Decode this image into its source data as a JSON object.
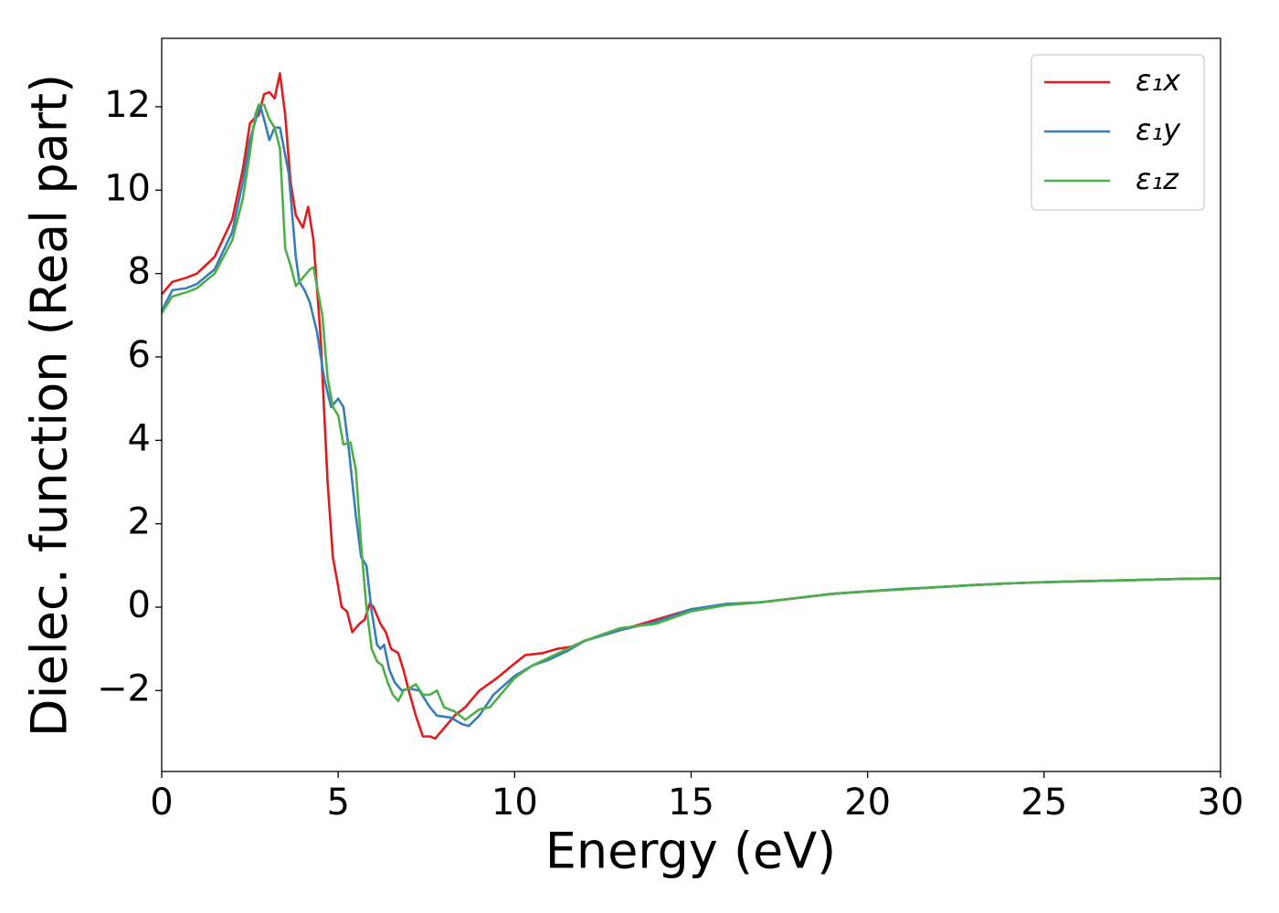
{
  "chart_data": {
    "type": "line",
    "xlabel": "Energy (eV)",
    "ylabel": "Dielec. function (Real part)",
    "xlim": [
      0,
      30
    ],
    "xticks": [
      0,
      5,
      10,
      15,
      20,
      25,
      30
    ],
    "ylim": [
      -3.94,
      13.64
    ],
    "yticks": [
      {
        "value": -2,
        "label": "−2"
      },
      0,
      2,
      4,
      6,
      8,
      10,
      12
    ],
    "legend": "upper right",
    "series": [
      {
        "name": "ε₁x",
        "color": "#e41a1c",
        "x": [
          0,
          0.3,
          0.7,
          1.0,
          1.5,
          2.0,
          2.3,
          2.5,
          2.6,
          2.75,
          2.9,
          3.05,
          3.2,
          3.35,
          3.5,
          3.65,
          3.8,
          4.0,
          4.15,
          4.3,
          4.5,
          4.7,
          4.85,
          5.0,
          5.1,
          5.25,
          5.4,
          5.6,
          5.75,
          5.9,
          6.0,
          6.2,
          6.35,
          6.5,
          6.7,
          6.85,
          7.0,
          7.2,
          7.4,
          7.6,
          7.75,
          8.0,
          8.3,
          8.6,
          9.0,
          9.5,
          10.0,
          10.3,
          10.8,
          11.2,
          11.6,
          12,
          13,
          14,
          15,
          16,
          17,
          18,
          19,
          20,
          21,
          22,
          23,
          24,
          25,
          26,
          27,
          28,
          29,
          30
        ],
        "values": [
          7.5,
          7.8,
          7.9,
          8.0,
          8.4,
          9.3,
          10.5,
          11.6,
          11.7,
          11.8,
          12.3,
          12.35,
          12.2,
          12.8,
          11.8,
          10.2,
          9.4,
          9.1,
          9.6,
          8.8,
          6.5,
          3.0,
          1.2,
          0.5,
          0.0,
          -0.1,
          -0.6,
          -0.4,
          -0.3,
          0.1,
          0.0,
          -0.4,
          -0.6,
          -1.0,
          -1.1,
          -1.5,
          -2.0,
          -2.6,
          -3.1,
          -3.1,
          -3.15,
          -2.9,
          -2.6,
          -2.4,
          -2.0,
          -1.7,
          -1.35,
          -1.15,
          -1.1,
          -1.0,
          -0.95,
          -0.8,
          -0.55,
          -0.3,
          -0.05,
          0.05,
          0.12,
          0.22,
          0.32,
          0.38,
          0.43,
          0.48,
          0.53,
          0.57,
          0.6,
          0.62,
          0.64,
          0.66,
          0.68,
          0.69
        ]
      },
      {
        "name": "ε₁y",
        "color": "#377eb8",
        "x": [
          0,
          0.3,
          0.7,
          1.0,
          1.5,
          2.0,
          2.3,
          2.5,
          2.7,
          2.8,
          2.9,
          3.05,
          3.2,
          3.35,
          3.6,
          3.8,
          3.9,
          4.05,
          4.2,
          4.4,
          4.6,
          4.8,
          5.0,
          5.15,
          5.3,
          5.5,
          5.65,
          5.8,
          5.95,
          6.1,
          6.2,
          6.3,
          6.45,
          6.6,
          6.8,
          7.0,
          7.3,
          7.6,
          7.8,
          8.2,
          8.5,
          8.7,
          9.0,
          9.4,
          10,
          10.5,
          11,
          11.5,
          12,
          13,
          14,
          15,
          16,
          17,
          18,
          19,
          20,
          21,
          22,
          23,
          24,
          25,
          26,
          27,
          28,
          29,
          30
        ],
        "values": [
          7.1,
          7.6,
          7.65,
          7.75,
          8.1,
          9.0,
          10.2,
          11.2,
          11.8,
          12.0,
          11.7,
          11.2,
          11.5,
          11.5,
          10.4,
          8.4,
          7.8,
          7.6,
          7.3,
          6.6,
          5.5,
          4.8,
          5.0,
          4.8,
          3.8,
          2.2,
          1.2,
          1.0,
          -0.1,
          -0.9,
          -1.0,
          -0.9,
          -1.5,
          -1.8,
          -2.0,
          -1.95,
          -2.0,
          -2.4,
          -2.6,
          -2.65,
          -2.8,
          -2.85,
          -2.6,
          -2.1,
          -1.65,
          -1.4,
          -1.25,
          -1.05,
          -0.8,
          -0.55,
          -0.35,
          -0.05,
          0.08,
          0.12,
          0.22,
          0.32,
          0.38,
          0.44,
          0.48,
          0.53,
          0.57,
          0.6,
          0.62,
          0.64,
          0.66,
          0.68,
          0.69
        ]
      },
      {
        "name": "ε₁z",
        "color": "#4daf4a",
        "x": [
          0,
          0.3,
          0.7,
          1.0,
          1.5,
          2.0,
          2.3,
          2.5,
          2.65,
          2.75,
          2.9,
          3.05,
          3.2,
          3.35,
          3.5,
          3.65,
          3.8,
          4.0,
          4.2,
          4.3,
          4.4,
          4.55,
          4.7,
          4.85,
          5.0,
          5.15,
          5.35,
          5.5,
          5.65,
          5.8,
          5.95,
          6.1,
          6.25,
          6.4,
          6.55,
          6.7,
          6.85,
          7.0,
          7.2,
          7.4,
          7.6,
          7.8,
          8.0,
          8.3,
          8.6,
          9.0,
          9.3,
          10,
          10.5,
          11,
          11.5,
          12,
          13,
          14,
          15,
          16,
          17,
          18,
          19,
          20,
          21,
          22,
          23,
          24,
          25,
          26,
          27,
          28,
          29,
          30
        ],
        "values": [
          7.05,
          7.45,
          7.55,
          7.65,
          8.0,
          8.8,
          9.8,
          10.9,
          11.8,
          12.05,
          12.05,
          11.7,
          11.5,
          11.0,
          8.6,
          8.2,
          7.7,
          7.9,
          8.1,
          8.15,
          7.7,
          7.0,
          5.5,
          4.8,
          4.6,
          3.9,
          3.95,
          3.3,
          1.5,
          0.0,
          -1.0,
          -1.3,
          -1.4,
          -1.8,
          -2.1,
          -2.25,
          -2.0,
          -1.95,
          -1.85,
          -2.1,
          -2.1,
          -2.0,
          -2.4,
          -2.5,
          -2.7,
          -2.45,
          -2.4,
          -1.7,
          -1.4,
          -1.2,
          -1.0,
          -0.8,
          -0.5,
          -0.4,
          -0.1,
          0.05,
          0.12,
          0.22,
          0.32,
          0.38,
          0.43,
          0.48,
          0.53,
          0.57,
          0.6,
          0.62,
          0.64,
          0.66,
          0.68,
          0.69
        ]
      }
    ]
  }
}
